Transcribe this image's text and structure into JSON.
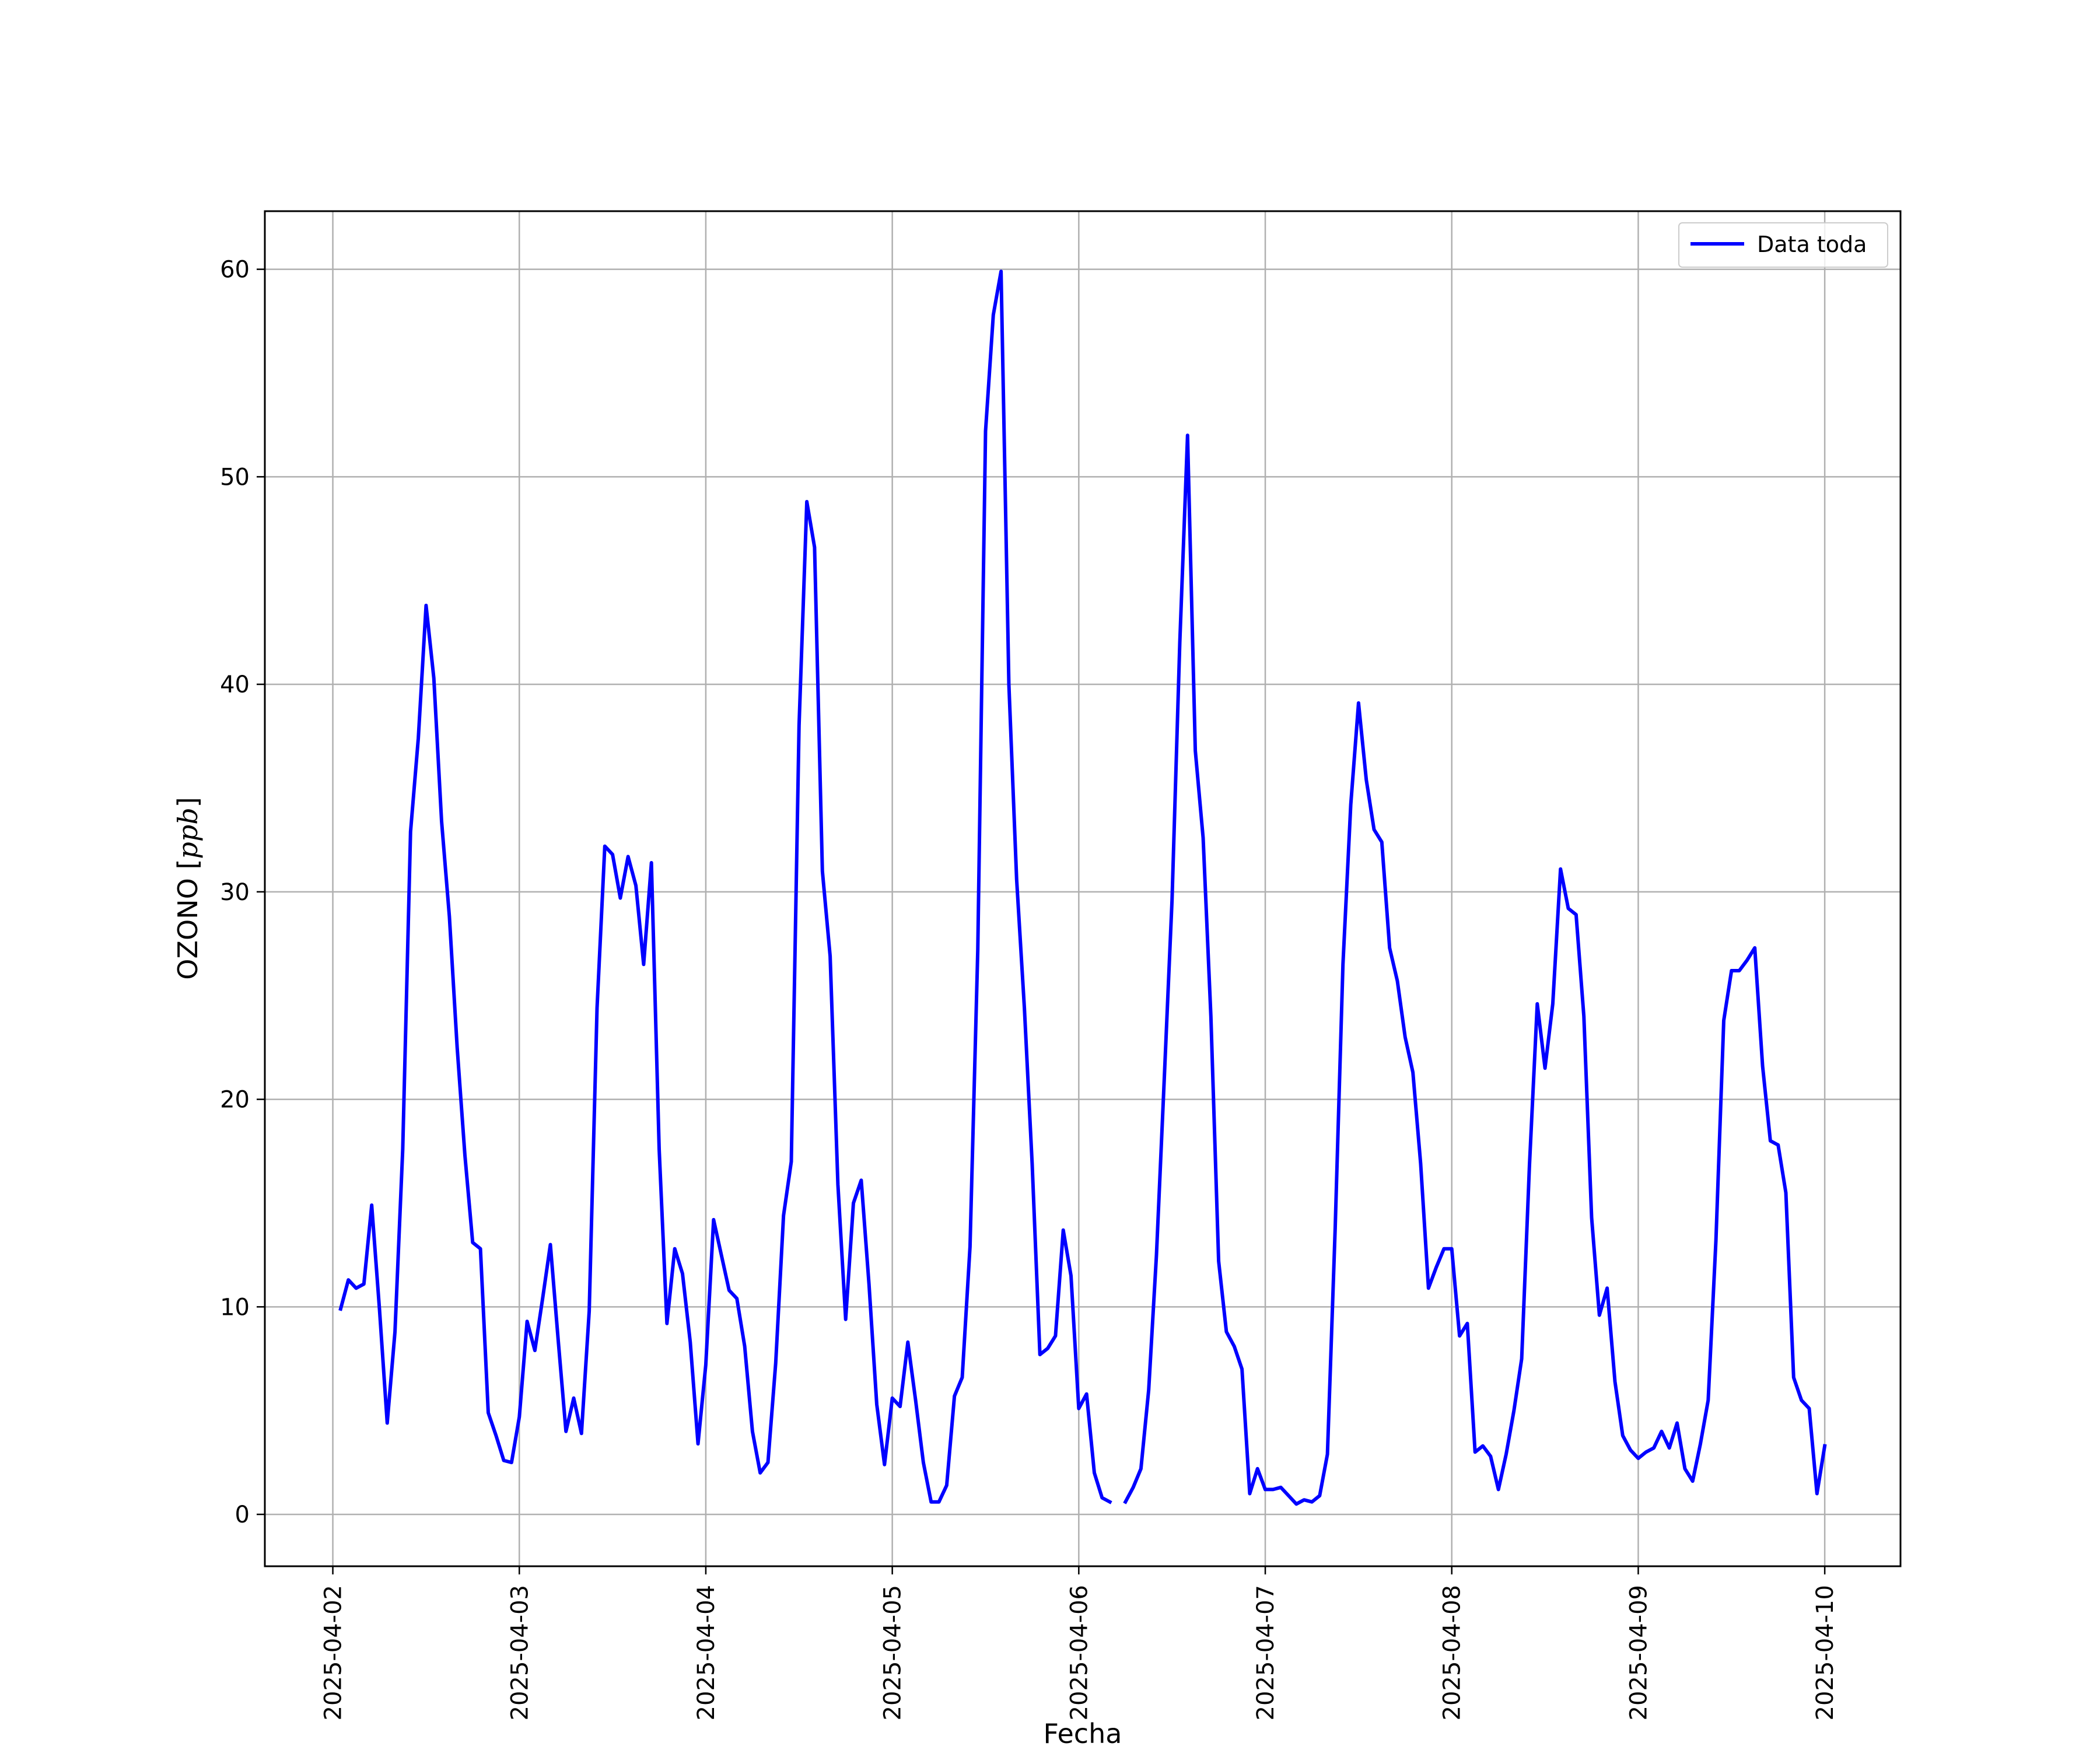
{
  "chart_data": {
    "type": "line",
    "title": "",
    "xlabel": "Fecha",
    "ylabel": "OZONO [ppb]",
    "ylabel_parts": {
      "prefix": "OZONO [",
      "unit": "ppb",
      "suffix": "]"
    },
    "ylim": [
      -2.5,
      62.8
    ],
    "xlim": [
      "2025-04-01 15:15",
      "2025-04-10 09:45"
    ],
    "yticks": [
      0,
      10,
      20,
      30,
      40,
      50,
      60
    ],
    "xticks": [
      "2025-04-02",
      "2025-04-03",
      "2025-04-04",
      "2025-04-05",
      "2025-04-06",
      "2025-04-07",
      "2025-04-08",
      "2025-04-09",
      "2025-04-10"
    ],
    "grid": true,
    "legend_position": "top-right",
    "colors": {
      "line": "#0000ff",
      "grid": "#b0b0b0",
      "axes": "#000000"
    },
    "series": [
      {
        "name": "Data toda",
        "x_start": "2025-04-02 01:00",
        "x_step_hours": 1,
        "values": [
          9.9,
          11.3,
          10.9,
          11.1,
          14.9,
          9.9,
          4.4,
          8.8,
          17.6,
          32.9,
          37.4,
          43.8,
          40.3,
          33.4,
          28.8,
          22.5,
          17.3,
          13.1,
          12.8,
          4.9,
          3.8,
          2.6,
          2.5,
          4.7,
          9.3,
          7.9,
          10.4,
          13.0,
          8.4,
          4.0,
          5.6,
          3.9,
          9.8,
          24.4,
          32.2,
          31.8,
          29.7,
          31.7,
          30.3,
          26.5,
          31.4,
          17.6,
          9.2,
          12.8,
          11.6,
          8.3,
          3.4,
          7.2,
          14.2,
          12.5,
          10.8,
          10.4,
          8.1,
          4.0,
          2.0,
          2.5,
          7.3,
          14.4,
          17.0,
          38.0,
          48.8,
          46.6,
          31.0,
          26.9,
          15.9,
          9.4,
          15.0,
          16.1,
          11.1,
          5.3,
          2.4,
          5.6,
          5.2,
          8.3,
          5.5,
          2.5,
          0.6,
          0.6,
          1.4,
          5.7,
          6.6,
          12.9,
          27.2,
          52.2,
          57.8,
          59.9,
          40.0,
          30.6,
          24.4,
          16.9,
          7.7,
          8.0,
          8.6,
          13.7,
          11.5,
          5.1,
          5.8,
          2.0,
          0.8,
          0.6,
          null,
          0.6,
          1.3,
          2.2,
          6.0,
          12.5,
          21.0,
          29.6,
          42.0,
          52.0,
          36.8,
          32.6,
          24.0,
          12.2,
          8.8,
          8.1,
          7.0,
          1.0,
          2.2,
          1.2,
          1.2,
          1.3,
          0.9,
          0.5,
          0.7,
          0.6,
          0.9,
          2.9,
          13.8,
          26.5,
          34.2,
          39.1,
          35.4,
          33.0,
          32.4,
          27.3,
          25.7,
          23.0,
          21.3,
          16.9,
          10.9,
          11.9,
          12.8,
          12.8,
          8.6,
          9.2,
          3.0,
          3.3,
          2.8,
          1.2,
          2.9,
          5.0,
          7.5,
          16.8,
          24.6,
          21.5,
          24.6,
          31.1,
          29.2,
          28.9,
          24.0,
          14.3,
          9.6,
          10.9,
          6.4,
          3.8,
          3.1,
          2.7,
          3.0,
          3.2,
          4.0,
          3.2,
          4.4,
          2.2,
          1.6,
          3.4,
          5.5,
          13.2,
          23.8,
          26.2,
          26.2,
          26.7,
          27.3,
          21.6,
          18.0,
          17.8,
          15.5,
          6.6,
          5.5,
          5.1,
          1.0,
          3.3
        ]
      }
    ]
  }
}
